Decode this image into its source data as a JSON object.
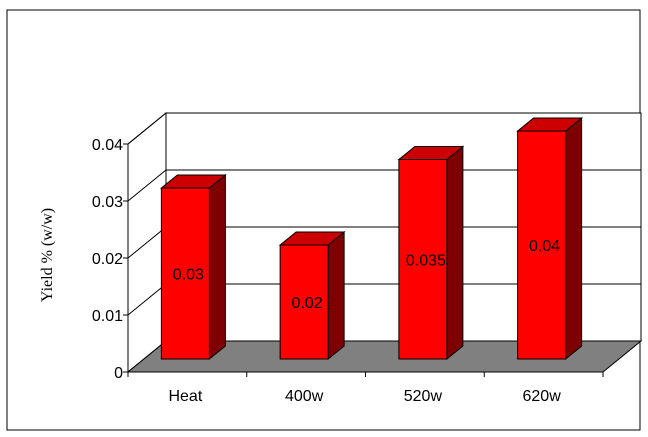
{
  "chart_data": {
    "type": "bar",
    "categories": [
      "Heat",
      "400w",
      "520w",
      "620w"
    ],
    "values": [
      0.03,
      0.02,
      0.035,
      0.04
    ],
    "data_labels": [
      "0.03",
      "0.02",
      "0.035",
      "0.04"
    ],
    "title": "",
    "xlabel": "",
    "ylabel": "Yield % (w/w)",
    "ylim": [
      0,
      0.04
    ],
    "yticks": [
      "0",
      "0.01",
      "0.02",
      "0.03",
      "0.04"
    ],
    "grid": true,
    "legend": "none",
    "style": "3d",
    "colors": {
      "bar_front": "#ff0000",
      "bar_side": "#7f0000",
      "bar_top": "#cc0000",
      "floor": "#808080",
      "plot_border": "#000000"
    }
  }
}
